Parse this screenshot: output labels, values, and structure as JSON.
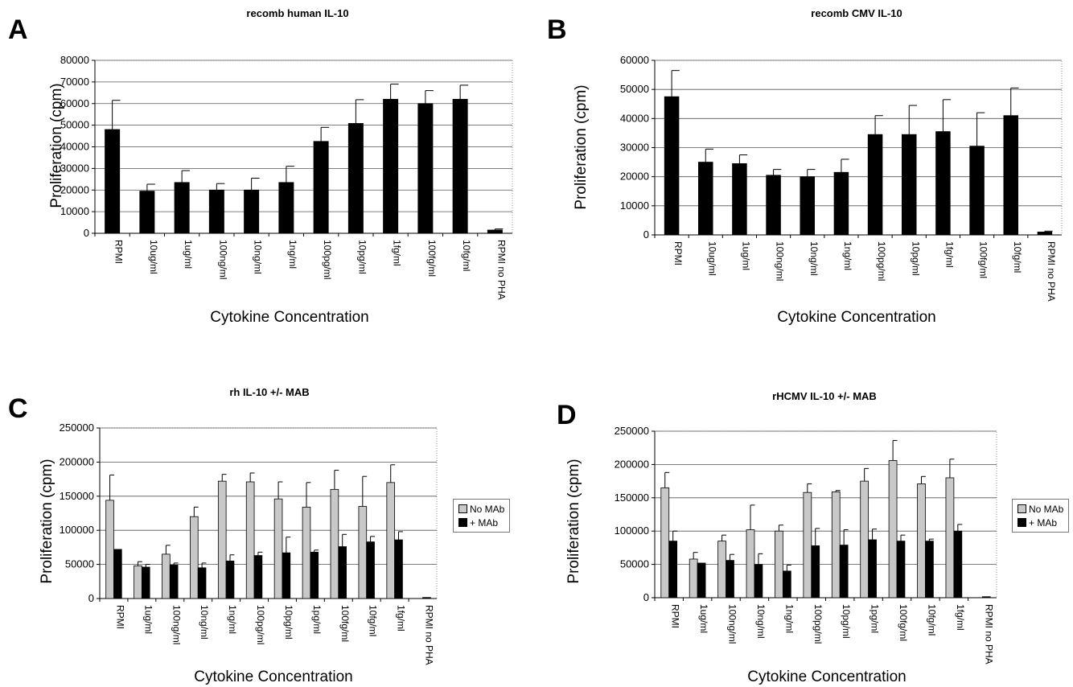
{
  "figure": {
    "panels": [
      {
        "letter": "A",
        "title": "recomb human IL-10"
      },
      {
        "letter": "B",
        "title": "recomb CMV IL-10"
      },
      {
        "letter": "C",
        "title": "rh IL-10 +/- MAB"
      },
      {
        "letter": "D",
        "title": "rHCMV IL-10 +/- MAB"
      }
    ]
  },
  "chart_data": [
    {
      "type": "bar",
      "title": "recomb human IL-10",
      "xlabel": "Cytokine Concentration",
      "ylabel": "Proliferation (cpm)",
      "ylim": [
        0,
        80000
      ],
      "yticks": [
        0,
        10000,
        20000,
        30000,
        40000,
        50000,
        60000,
        70000,
        80000
      ],
      "grid": true,
      "categories": [
        "RPMI",
        "10ug/ml",
        "1ug/ml",
        "100ng/ml",
        "10ng/ml",
        "1ng/ml",
        "100pg/ml",
        "10pg/ml",
        "1fg/ml",
        "100fg/ml",
        "10fg/ml",
        "RPMI no PHA"
      ],
      "series": [
        {
          "values": [
            48000,
            19500,
            23500,
            20000,
            20000,
            23500,
            42500,
            50800,
            62000,
            60000,
            62000,
            1500
          ],
          "errors": [
            13500,
            3200,
            5500,
            3000,
            5500,
            7500,
            6500,
            11000,
            7000,
            6000,
            6500,
            500
          ],
          "color": "#000000"
        }
      ]
    },
    {
      "type": "bar",
      "title": "recomb CMV IL-10",
      "xlabel": "Cytokine Concentration",
      "ylabel": "Proliferation (cpm)",
      "ylim": [
        0,
        60000
      ],
      "yticks": [
        0,
        10000,
        20000,
        30000,
        40000,
        50000,
        60000
      ],
      "grid": true,
      "categories": [
        "RPMI",
        "10ug/ml",
        "1ug/ml",
        "100ng/ml",
        "10ng/ml",
        "1ng/ml",
        "100pg/ml",
        "10pg/ml",
        "1fg/ml",
        "100fg/ml",
        "10fg/ml",
        "RPMI no PHA"
      ],
      "series": [
        {
          "values": [
            47500,
            25000,
            24500,
            20500,
            20000,
            21500,
            34500,
            34500,
            35500,
            30500,
            41000,
            1000
          ],
          "errors": [
            9000,
            4500,
            3000,
            2000,
            2500,
            4500,
            6500,
            10000,
            11000,
            11500,
            9500,
            300
          ],
          "color": "#000000"
        }
      ]
    },
    {
      "type": "bar",
      "title": "rh IL-10 +/- MAB",
      "xlabel": "Cytokine Concentration",
      "ylabel": "Proliferation (cpm)",
      "ylim": [
        0,
        250000
      ],
      "yticks": [
        0,
        50000,
        100000,
        150000,
        200000,
        250000
      ],
      "grid": true,
      "legend": "right",
      "categories": [
        "RPMI",
        "1ug/ml",
        "100ng/ml",
        "10ng/ml",
        "1ng/ml",
        "100pg/ml",
        "10pg/ml",
        "1pg/ml",
        "100fg/ml",
        "10fg/ml",
        "1fg/ml",
        "RPMI no PHA"
      ],
      "series": [
        {
          "name": "No MAb",
          "color": "#c8c8c8",
          "values": [
            144000,
            48000,
            65000,
            120000,
            172000,
            171000,
            146000,
            134000,
            160000,
            135000,
            170000,
            0
          ],
          "errors": [
            37000,
            6000,
            13000,
            14000,
            10000,
            13000,
            25000,
            36000,
            28000,
            44000,
            26000,
            0
          ]
        },
        {
          "name": "+ MAb",
          "color": "#000000",
          "values": [
            72000,
            46000,
            49000,
            45000,
            55000,
            63000,
            67000,
            68000,
            76000,
            83000,
            86000,
            1500
          ],
          "errors": [
            0,
            4000,
            3000,
            7000,
            9000,
            5000,
            23000,
            3000,
            18000,
            8000,
            12000,
            0
          ]
        }
      ]
    },
    {
      "type": "bar",
      "title": "rHCMV IL-10 +/- MAB",
      "xlabel": "Cytokine Concentration",
      "ylabel": "Proliferation (cpm)",
      "ylim": [
        0,
        250000
      ],
      "yticks": [
        0,
        50000,
        100000,
        150000,
        200000,
        250000
      ],
      "grid": true,
      "legend": "right",
      "categories": [
        "RPMI",
        "1ug/ml",
        "100ng/ml",
        "10ng/ml",
        "1ng/ml",
        "100pg/ml",
        "10pg/ml",
        "1pg/ml",
        "100fg/ml",
        "10fg/ml",
        "1fg/ml",
        "RPMI no PHA"
      ],
      "series": [
        {
          "name": "No MAb",
          "color": "#c8c8c8",
          "values": [
            165000,
            58000,
            85000,
            102000,
            100000,
            158000,
            159000,
            175000,
            206000,
            171000,
            180000,
            0
          ],
          "errors": [
            23000,
            10000,
            9000,
            37000,
            9000,
            13000,
            2000,
            19000,
            30000,
            11000,
            28000,
            0
          ]
        },
        {
          "name": "+ MAb",
          "color": "#000000",
          "values": [
            85000,
            52000,
            56000,
            50000,
            40000,
            78000,
            79000,
            87000,
            85000,
            85000,
            100000,
            1500
          ],
          "errors": [
            15000,
            0,
            9000,
            16000,
            9000,
            26000,
            23000,
            16000,
            9000,
            3000,
            10000,
            0
          ]
        }
      ]
    }
  ]
}
